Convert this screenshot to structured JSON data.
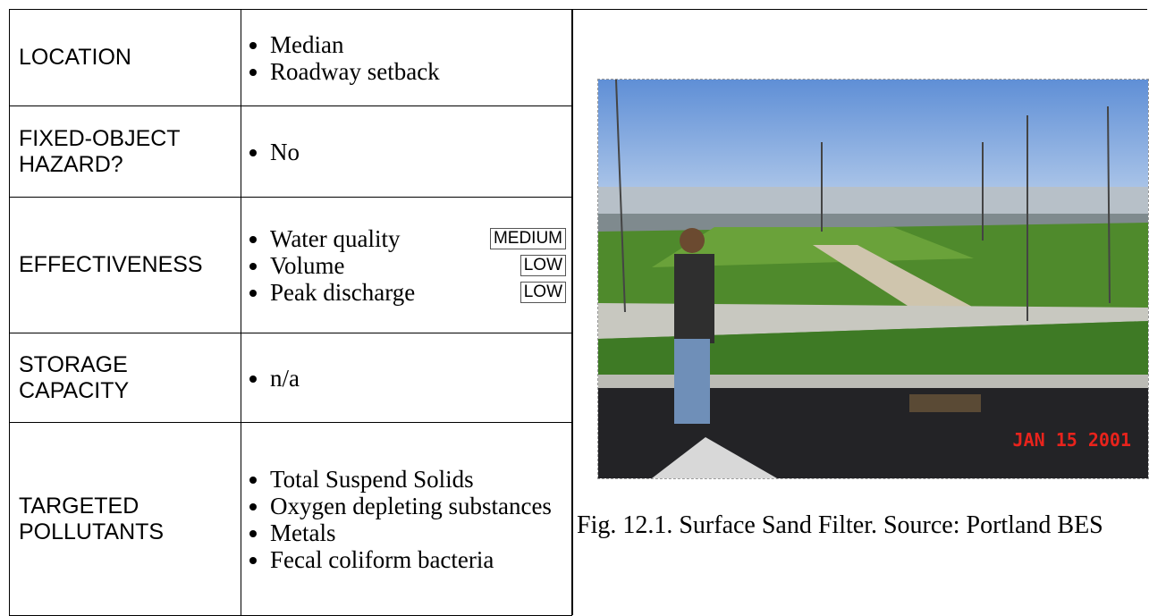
{
  "table": {
    "rows": [
      {
        "label": "LOCATION",
        "items": [
          "Median",
          "Roadway setback"
        ]
      },
      {
        "label": "FIXED-OBJECT HAZARD?",
        "items": [
          "No"
        ]
      },
      {
        "label": "EFFECTIVENESS",
        "items": [
          "Water quality",
          "Volume",
          "Peak discharge"
        ],
        "ratings": [
          "MEDIUM",
          "LOW",
          "LOW"
        ]
      },
      {
        "label": "STORAGE CAPACITY",
        "items": [
          "n/a"
        ]
      },
      {
        "label": "TARGETED POLLUTANTS",
        "items": [
          "Total Suspend Solids",
          "Oxygen depleting substances",
          "Metals",
          "Fecal coliform bacteria"
        ]
      }
    ]
  },
  "figure": {
    "caption": "Fig. 12.1. Surface Sand Filter. Source: Portland BES",
    "date_stamp": "JAN 15 2001"
  }
}
